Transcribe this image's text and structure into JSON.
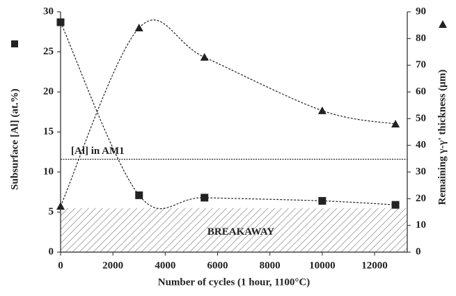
{
  "chart_data": {
    "type": "line",
    "smooth": true,
    "line_style": "dashed",
    "x_label": "Number of cycles (1 hour, 1100°C)",
    "y_label": "Subsurface [Al] (at.%)",
    "y2_label": "Remaining γ-γ' thickness (μm)",
    "x": [
      0,
      3000,
      5500,
      10000,
      12800
    ],
    "series": [
      {
        "color": "#222222",
        "marker": "square",
        "values": [
          28.7,
          7.1,
          6.8,
          6.4,
          5.9
        ]
      },
      {
        "color": "#222222",
        "marker": "triangle",
        "axis": "y2",
        "values": [
          17.2,
          84,
          73,
          53,
          48
        ]
      }
    ],
    "xlim": [
      0,
      13250
    ],
    "xticks": [
      0,
      2000,
      4000,
      6000,
      8000,
      10000,
      12000
    ],
    "ylim": [
      0,
      30
    ],
    "yticks": [
      0,
      5,
      10,
      15,
      20,
      25,
      30
    ],
    "y2lim": [
      0,
      90
    ],
    "y2ticks": [
      0,
      10,
      20,
      30,
      40,
      50,
      60,
      70,
      80,
      90
    ],
    "annotations": [
      {
        "text": "[Al] in AM1",
        "y": 11.6
      },
      {
        "text": "BREAKAWAY",
        "y": [
          0,
          5.5
        ]
      }
    ]
  }
}
